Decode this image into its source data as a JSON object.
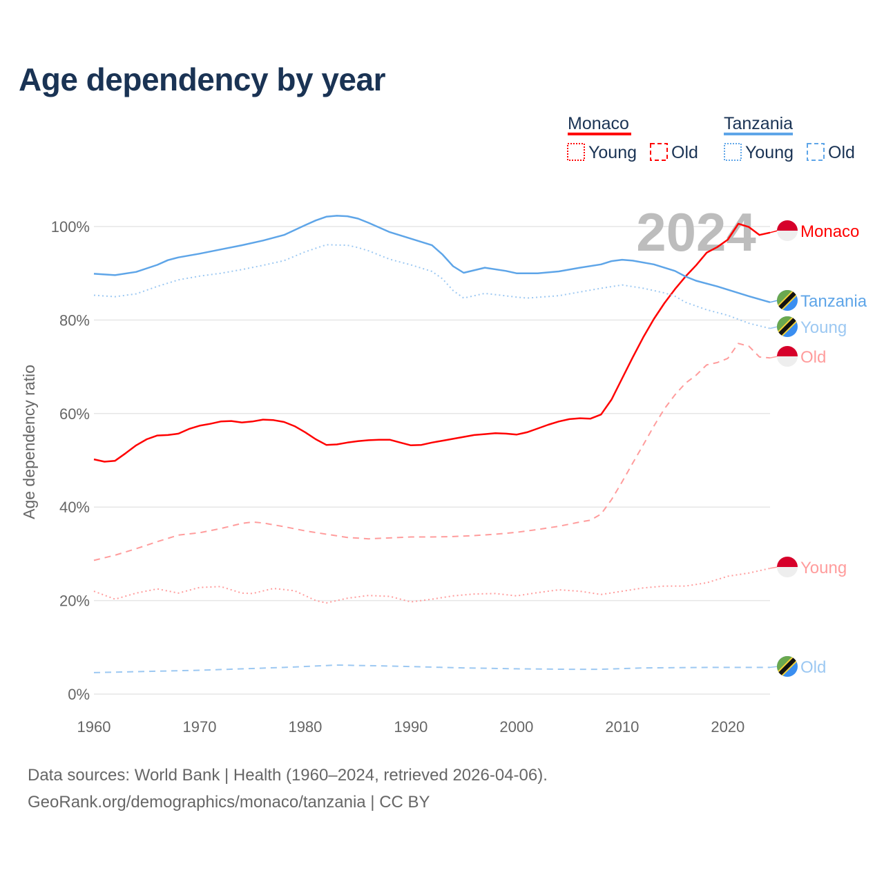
{
  "title": "Age dependency by year",
  "footer": {
    "line1": "Data sources: World Bank | Health (1960–2024, retrieved 2026-04-06).",
    "line2": "GeoRank.org/demographics/monaco/tanzania | CC BY"
  },
  "chart_data": {
    "type": "line",
    "title": "Age dependency by year",
    "xlabel": "",
    "ylabel": "Age dependency ratio",
    "xlim": [
      1960,
      2024
    ],
    "ylim": [
      0,
      100
    ],
    "x_ticks": [
      "1960",
      "1970",
      "1980",
      "1990",
      "2000",
      "2010",
      "2020"
    ],
    "x_tick_values": [
      1960,
      1970,
      1980,
      1990,
      2000,
      2010,
      2020
    ],
    "y_ticks": [
      "0%",
      "20%",
      "40%",
      "60%",
      "80%",
      "100%"
    ],
    "y_tick_values": [
      0,
      20,
      40,
      60,
      80,
      100
    ],
    "grid": true,
    "year_label": "2024",
    "legend": {
      "placement": "top-right",
      "groups": [
        {
          "country": "Monaco",
          "color": "#ff0000",
          "items": [
            "Young",
            "Old"
          ]
        },
        {
          "country": "Tanzania",
          "color": "#5ea5e8",
          "items": [
            "Young",
            "Old"
          ]
        }
      ]
    },
    "series": [
      {
        "name": "Monaco",
        "label": "Monaco",
        "flag": "monaco",
        "color": "#ff0000",
        "style": "solid",
        "x": [
          1960,
          1961,
          1962,
          1963,
          1964,
          1965,
          1966,
          1967,
          1968,
          1969,
          1970,
          1971,
          1972,
          1973,
          1974,
          1975,
          1976,
          1977,
          1978,
          1979,
          1980,
          1981,
          1982,
          1983,
          1984,
          1985,
          1986,
          1987,
          1988,
          1989,
          1990,
          1991,
          1992,
          1993,
          1994,
          1995,
          1996,
          1997,
          1998,
          1999,
          2000,
          2001,
          2002,
          2003,
          2004,
          2005,
          2006,
          2007,
          2008,
          2009,
          2010,
          2011,
          2012,
          2013,
          2014,
          2015,
          2016,
          2017,
          2018,
          2019,
          2020,
          2021,
          2022,
          2023,
          2024
        ],
        "y": [
          50.2,
          49.7,
          49.9,
          51.5,
          53.2,
          54.5,
          55.3,
          55.4,
          55.7,
          56.7,
          57.4,
          57.8,
          58.3,
          58.4,
          58.1,
          58.3,
          58.7,
          58.6,
          58.2,
          57.3,
          56.0,
          54.5,
          53.3,
          53.4,
          53.8,
          54.1,
          54.3,
          54.4,
          54.4,
          53.8,
          53.2,
          53.3,
          53.8,
          54.2,
          54.6,
          55.0,
          55.4,
          55.6,
          55.8,
          55.7,
          55.5,
          56.0,
          56.8,
          57.6,
          58.3,
          58.8,
          59.0,
          58.9,
          59.8,
          63.0,
          67.5,
          72.0,
          76.3,
          80.2,
          83.6,
          86.6,
          89.3,
          91.7,
          94.4,
          95.6,
          97.2,
          100.6,
          99.9,
          98.2,
          98.7
        ]
      },
      {
        "name": "Tanzania",
        "label": "Tanzania",
        "flag": "tanzania",
        "color": "#5ea5e8",
        "style": "solid",
        "x": [
          1960,
          1962,
          1964,
          1966,
          1967,
          1968,
          1970,
          1972,
          1974,
          1976,
          1978,
          1980,
          1981,
          1982,
          1983,
          1984,
          1985,
          1986,
          1988,
          1990,
          1992,
          1993,
          1994,
          1995,
          1997,
          1999,
          2000,
          2002,
          2004,
          2006,
          2008,
          2009,
          2010,
          2011,
          2013,
          2015,
          2016,
          2017,
          2019,
          2020,
          2022,
          2024
        ],
        "y": [
          89.9,
          89.6,
          90.3,
          91.8,
          92.8,
          93.4,
          94.2,
          95.1,
          96.0,
          97.0,
          98.2,
          100.3,
          101.3,
          102.1,
          102.3,
          102.2,
          101.7,
          100.8,
          98.8,
          97.4,
          96.0,
          94.0,
          91.5,
          90.1,
          91.2,
          90.5,
          90.0,
          90.0,
          90.4,
          91.2,
          91.9,
          92.6,
          92.9,
          92.7,
          91.9,
          90.5,
          89.3,
          88.4,
          87.2,
          86.5,
          85.1,
          83.8
        ]
      },
      {
        "name": "Tanzania Young",
        "label": "Young",
        "flag": "tanzania",
        "color": "#9cc8f2",
        "style": "dotted",
        "x": [
          1960,
          1962,
          1964,
          1966,
          1968,
          1970,
          1972,
          1974,
          1976,
          1978,
          1980,
          1982,
          1984,
          1985,
          1986,
          1988,
          1990,
          1992,
          1993,
          1994,
          1995,
          1997,
          2000,
          2001,
          2004,
          2006,
          2008,
          2010,
          2012,
          2014,
          2015,
          2016,
          2018,
          2020,
          2022,
          2024
        ],
        "y": [
          85.3,
          85.0,
          85.6,
          87.2,
          88.6,
          89.4,
          90.0,
          90.8,
          91.7,
          92.7,
          94.6,
          96.1,
          96.0,
          95.5,
          94.8,
          93.0,
          91.8,
          90.4,
          88.8,
          86.3,
          84.7,
          85.7,
          84.9,
          84.7,
          85.2,
          86.0,
          86.8,
          87.5,
          86.8,
          85.8,
          85.1,
          83.8,
          82.2,
          81.0,
          79.3,
          78.2
        ]
      },
      {
        "name": "Monaco Old",
        "label": "Old",
        "flag": "monaco",
        "color": "#ff9c9c",
        "style": "dashed",
        "x": [
          1960,
          1962,
          1964,
          1966,
          1968,
          1970,
          1972,
          1974,
          1975,
          1976,
          1978,
          1980,
          1982,
          1984,
          1986,
          1988,
          1990,
          1992,
          1994,
          1996,
          1998,
          2000,
          2002,
          2004,
          2006,
          2007,
          2008,
          2009,
          2010,
          2011,
          2012,
          2013,
          2014,
          2015,
          2016,
          2017,
          2018,
          2019,
          2020,
          2021,
          2022,
          2023,
          2024
        ],
        "y": [
          28.6,
          29.7,
          31.1,
          32.6,
          34.0,
          34.5,
          35.4,
          36.5,
          36.8,
          36.6,
          35.8,
          34.9,
          34.2,
          33.5,
          33.2,
          33.4,
          33.6,
          33.6,
          33.7,
          33.9,
          34.2,
          34.6,
          35.2,
          35.9,
          36.8,
          37.2,
          38.5,
          41.6,
          45.4,
          49.4,
          53.3,
          57.3,
          61.0,
          64.0,
          66.5,
          68.2,
          70.4,
          70.9,
          71.8,
          75.0,
          74.4,
          72.1,
          71.9
        ]
      },
      {
        "name": "Monaco Young",
        "label": "Young",
        "flag": "monaco",
        "color": "#ff9c9c",
        "style": "dotted",
        "x": [
          1960,
          1962,
          1964,
          1966,
          1968,
          1970,
          1972,
          1974,
          1975,
          1977,
          1979,
          1981,
          1982,
          1984,
          1986,
          1988,
          1990,
          1992,
          1994,
          1996,
          1998,
          2000,
          2002,
          2004,
          2006,
          2008,
          2010,
          2012,
          2014,
          2016,
          2018,
          2020,
          2022,
          2024
        ],
        "y": [
          22.0,
          20.3,
          21.6,
          22.5,
          21.6,
          22.8,
          23.0,
          21.6,
          21.5,
          22.6,
          22.1,
          20.0,
          19.5,
          20.5,
          21.1,
          20.9,
          19.7,
          20.3,
          21.0,
          21.4,
          21.5,
          21.0,
          21.7,
          22.3,
          22.0,
          21.3,
          22.0,
          22.7,
          23.1,
          23.1,
          23.8,
          25.2,
          25.9,
          26.9
        ]
      },
      {
        "name": "Tanzania Old",
        "label": "Old",
        "flag": "tanzania",
        "color": "#9cc8f2",
        "style": "dashed",
        "x": [
          1960,
          1970,
          1978,
          1983,
          1988,
          1995,
          2000,
          2005,
          2008,
          2012,
          2018,
          2024
        ],
        "y": [
          4.6,
          5.1,
          5.7,
          6.2,
          6.0,
          5.6,
          5.4,
          5.3,
          5.3,
          5.6,
          5.7,
          5.7
        ]
      }
    ]
  }
}
